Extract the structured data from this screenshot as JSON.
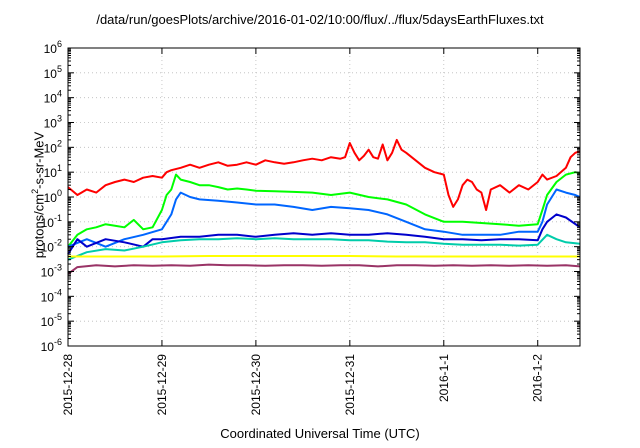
{
  "chart_data": {
    "type": "line",
    "title": "/data/run/goesPlots/archive/2016-01-02/10:00/flux/../flux/5daysEarthFluxes.txt",
    "xlabel": "Coordinated Universal Time (UTC)",
    "ylabel": {
      "prefix": "protons/cm",
      "sup": "2",
      "suffix": "-s-sr-MeV"
    },
    "yscale": "log",
    "ylim": [
      1e-06,
      1000000.0
    ],
    "xlim": [
      0,
      5.45
    ],
    "x_unit": "days since 2015-12-28 00:00 UTC",
    "grid": true,
    "x_ticks": [
      {
        "x": 0,
        "label": "2015-12-28"
      },
      {
        "x": 1,
        "label": "2015-12-29"
      },
      {
        "x": 2,
        "label": "2015-12-30"
      },
      {
        "x": 3,
        "label": "2015-12-31"
      },
      {
        "x": 4,
        "label": "2016-1-1"
      },
      {
        "x": 5,
        "label": "2016-1-2"
      }
    ],
    "y_ticks": [
      {
        "base": "10",
        "exp": "-6"
      },
      {
        "base": "10",
        "exp": "-5"
      },
      {
        "base": "10",
        "exp": "-4"
      },
      {
        "base": "10",
        "exp": "-3"
      },
      {
        "base": "10",
        "exp": "-2"
      },
      {
        "base": "10",
        "exp": "-1"
      },
      {
        "base": "10",
        "exp": "0"
      },
      {
        "base": "10",
        "exp": "1"
      },
      {
        "base": "10",
        "exp": "2"
      },
      {
        "base": "10",
        "exp": "3"
      },
      {
        "base": "10",
        "exp": "4"
      },
      {
        "base": "10",
        "exp": "5"
      },
      {
        "base": "10",
        "exp": "6"
      }
    ],
    "series": [
      {
        "color": "#ff0000",
        "points": [
          [
            0,
            2.5
          ],
          [
            0.1,
            1.2
          ],
          [
            0.2,
            2
          ],
          [
            0.3,
            1.5
          ],
          [
            0.4,
            3
          ],
          [
            0.5,
            4
          ],
          [
            0.6,
            5
          ],
          [
            0.7,
            4
          ],
          [
            0.8,
            6
          ],
          [
            0.9,
            7
          ],
          [
            1.0,
            6
          ],
          [
            1.05,
            10
          ],
          [
            1.1,
            12
          ],
          [
            1.2,
            15
          ],
          [
            1.3,
            20
          ],
          [
            1.4,
            15
          ],
          [
            1.5,
            20
          ],
          [
            1.6,
            25
          ],
          [
            1.7,
            18
          ],
          [
            1.8,
            20
          ],
          [
            1.9,
            25
          ],
          [
            2.0,
            20
          ],
          [
            2.1,
            30
          ],
          [
            2.2,
            25
          ],
          [
            2.3,
            22
          ],
          [
            2.4,
            25
          ],
          [
            2.5,
            30
          ],
          [
            2.6,
            35
          ],
          [
            2.7,
            30
          ],
          [
            2.8,
            40
          ],
          [
            2.9,
            35
          ],
          [
            2.95,
            40
          ],
          [
            3.0,
            150
          ],
          [
            3.05,
            60
          ],
          [
            3.1,
            30
          ],
          [
            3.15,
            45
          ],
          [
            3.2,
            80
          ],
          [
            3.25,
            40
          ],
          [
            3.3,
            35
          ],
          [
            3.35,
            130
          ],
          [
            3.4,
            30
          ],
          [
            3.45,
            60
          ],
          [
            3.5,
            200
          ],
          [
            3.55,
            80
          ],
          [
            3.6,
            60
          ],
          [
            3.7,
            30
          ],
          [
            3.8,
            15
          ],
          [
            3.9,
            10
          ],
          [
            4.0,
            8
          ],
          [
            4.05,
            1.2
          ],
          [
            4.1,
            0.4
          ],
          [
            4.15,
            0.8
          ],
          [
            4.2,
            3
          ],
          [
            4.25,
            5
          ],
          [
            4.3,
            4
          ],
          [
            4.35,
            2
          ],
          [
            4.4,
            1.5
          ],
          [
            4.45,
            0.3
          ],
          [
            4.5,
            2
          ],
          [
            4.6,
            3
          ],
          [
            4.7,
            1.5
          ],
          [
            4.8,
            3
          ],
          [
            4.9,
            2
          ],
          [
            5.0,
            4
          ],
          [
            5.05,
            8
          ],
          [
            5.1,
            5
          ],
          [
            5.2,
            7
          ],
          [
            5.3,
            15
          ],
          [
            5.35,
            40
          ],
          [
            5.4,
            60
          ],
          [
            5.45,
            70
          ]
        ]
      },
      {
        "color": "#00ff00",
        "points": [
          [
            0,
            0.01
          ],
          [
            0.1,
            0.03
          ],
          [
            0.2,
            0.05
          ],
          [
            0.3,
            0.06
          ],
          [
            0.4,
            0.08
          ],
          [
            0.5,
            0.07
          ],
          [
            0.6,
            0.06
          ],
          [
            0.7,
            0.12
          ],
          [
            0.8,
            0.05
          ],
          [
            0.9,
            0.06
          ],
          [
            1.0,
            0.3
          ],
          [
            1.05,
            1.2
          ],
          [
            1.1,
            2
          ],
          [
            1.15,
            8
          ],
          [
            1.2,
            5
          ],
          [
            1.3,
            4
          ],
          [
            1.4,
            3
          ],
          [
            1.5,
            3
          ],
          [
            1.6,
            2.5
          ],
          [
            1.7,
            2
          ],
          [
            1.8,
            2.2
          ],
          [
            1.9,
            2
          ],
          [
            2.0,
            1.8
          ],
          [
            2.2,
            1.7
          ],
          [
            2.4,
            1.6
          ],
          [
            2.6,
            1.5
          ],
          [
            2.8,
            1.2
          ],
          [
            3.0,
            1.5
          ],
          [
            3.2,
            1.0
          ],
          [
            3.4,
            0.8
          ],
          [
            3.6,
            0.5
          ],
          [
            3.8,
            0.2
          ],
          [
            4.0,
            0.1
          ],
          [
            4.2,
            0.1
          ],
          [
            4.4,
            0.09
          ],
          [
            4.6,
            0.08
          ],
          [
            4.8,
            0.07
          ],
          [
            5.0,
            0.08
          ],
          [
            5.05,
            0.3
          ],
          [
            5.1,
            1.2
          ],
          [
            5.2,
            4
          ],
          [
            5.3,
            8
          ],
          [
            5.4,
            10
          ],
          [
            5.45,
            9
          ]
        ]
      },
      {
        "color": "#0066ff",
        "points": [
          [
            0,
            0.01
          ],
          [
            0.2,
            0.02
          ],
          [
            0.4,
            0.01
          ],
          [
            0.6,
            0.02
          ],
          [
            0.8,
            0.03
          ],
          [
            1.0,
            0.05
          ],
          [
            1.1,
            0.2
          ],
          [
            1.15,
            0.8
          ],
          [
            1.2,
            1.5
          ],
          [
            1.3,
            1.0
          ],
          [
            1.4,
            0.8
          ],
          [
            1.6,
            0.7
          ],
          [
            1.8,
            0.6
          ],
          [
            2.0,
            0.5
          ],
          [
            2.2,
            0.5
          ],
          [
            2.4,
            0.4
          ],
          [
            2.6,
            0.3
          ],
          [
            2.8,
            0.4
          ],
          [
            3.0,
            0.35
          ],
          [
            3.2,
            0.3
          ],
          [
            3.4,
            0.2
          ],
          [
            3.6,
            0.1
          ],
          [
            3.8,
            0.05
          ],
          [
            4.0,
            0.04
          ],
          [
            4.2,
            0.03
          ],
          [
            4.4,
            0.03
          ],
          [
            4.6,
            0.03
          ],
          [
            4.8,
            0.04
          ],
          [
            5.0,
            0.04
          ],
          [
            5.05,
            0.1
          ],
          [
            5.1,
            0.5
          ],
          [
            5.2,
            2
          ],
          [
            5.3,
            1.5
          ],
          [
            5.4,
            1.2
          ],
          [
            5.45,
            1.0
          ]
        ]
      },
      {
        "color": "#0000cc",
        "points": [
          [
            0,
            0.005
          ],
          [
            0.1,
            0.02
          ],
          [
            0.2,
            0.01
          ],
          [
            0.4,
            0.02
          ],
          [
            0.6,
            0.015
          ],
          [
            0.8,
            0.01
          ],
          [
            0.9,
            0.02
          ],
          [
            1.0,
            0.02
          ],
          [
            1.2,
            0.025
          ],
          [
            1.4,
            0.025
          ],
          [
            1.6,
            0.03
          ],
          [
            1.8,
            0.03
          ],
          [
            2.0,
            0.025
          ],
          [
            2.2,
            0.03
          ],
          [
            2.4,
            0.035
          ],
          [
            2.6,
            0.03
          ],
          [
            2.8,
            0.035
          ],
          [
            3.0,
            0.03
          ],
          [
            3.2,
            0.03
          ],
          [
            3.4,
            0.035
          ],
          [
            3.6,
            0.03
          ],
          [
            3.8,
            0.025
          ],
          [
            4.0,
            0.02
          ],
          [
            4.2,
            0.02
          ],
          [
            4.4,
            0.018
          ],
          [
            4.6,
            0.02
          ],
          [
            4.8,
            0.02
          ],
          [
            5.0,
            0.018
          ],
          [
            5.05,
            0.05
          ],
          [
            5.1,
            0.1
          ],
          [
            5.2,
            0.2
          ],
          [
            5.3,
            0.15
          ],
          [
            5.45,
            0.06
          ]
        ]
      },
      {
        "color": "#00ccaa",
        "points": [
          [
            0,
            0.003
          ],
          [
            0.2,
            0.006
          ],
          [
            0.4,
            0.008
          ],
          [
            0.6,
            0.007
          ],
          [
            0.8,
            0.01
          ],
          [
            1.0,
            0.015
          ],
          [
            1.2,
            0.018
          ],
          [
            1.4,
            0.02
          ],
          [
            1.6,
            0.02
          ],
          [
            1.8,
            0.022
          ],
          [
            2.0,
            0.02
          ],
          [
            2.2,
            0.022
          ],
          [
            2.4,
            0.02
          ],
          [
            2.6,
            0.02
          ],
          [
            2.8,
            0.02
          ],
          [
            3.0,
            0.018
          ],
          [
            3.2,
            0.018
          ],
          [
            3.4,
            0.016
          ],
          [
            3.6,
            0.015
          ],
          [
            3.8,
            0.015
          ],
          [
            4.0,
            0.013
          ],
          [
            4.2,
            0.012
          ],
          [
            4.4,
            0.012
          ],
          [
            4.6,
            0.012
          ],
          [
            4.8,
            0.011
          ],
          [
            5.0,
            0.012
          ],
          [
            5.1,
            0.03
          ],
          [
            5.2,
            0.02
          ],
          [
            5.3,
            0.015
          ],
          [
            5.45,
            0.013
          ]
        ]
      },
      {
        "color": "#ffff00",
        "points": [
          [
            0,
            0.004
          ],
          [
            0.5,
            0.004
          ],
          [
            1.0,
            0.004
          ],
          [
            1.5,
            0.0042
          ],
          [
            2.0,
            0.0042
          ],
          [
            2.5,
            0.0042
          ],
          [
            3.0,
            0.0042
          ],
          [
            3.5,
            0.004
          ],
          [
            4.0,
            0.004
          ],
          [
            4.5,
            0.004
          ],
          [
            5.0,
            0.004
          ],
          [
            5.45,
            0.004
          ]
        ]
      },
      {
        "color": "#993366",
        "points": [
          [
            0,
            0.0008
          ],
          [
            0.1,
            0.0015
          ],
          [
            0.3,
            0.0018
          ],
          [
            0.5,
            0.0016
          ],
          [
            0.7,
            0.0018
          ],
          [
            0.9,
            0.0017
          ],
          [
            1.1,
            0.0018
          ],
          [
            1.3,
            0.0017
          ],
          [
            1.5,
            0.0019
          ],
          [
            1.7,
            0.0018
          ],
          [
            1.9,
            0.0018
          ],
          [
            2.1,
            0.0017
          ],
          [
            2.3,
            0.0018
          ],
          [
            2.5,
            0.0018
          ],
          [
            2.7,
            0.0017
          ],
          [
            2.9,
            0.0018
          ],
          [
            3.1,
            0.0018
          ],
          [
            3.3,
            0.0016
          ],
          [
            3.5,
            0.0018
          ],
          [
            3.7,
            0.0018
          ],
          [
            3.9,
            0.0017
          ],
          [
            4.1,
            0.0018
          ],
          [
            4.3,
            0.0017
          ],
          [
            4.5,
            0.0018
          ],
          [
            4.7,
            0.0017
          ],
          [
            4.9,
            0.0018
          ],
          [
            5.1,
            0.0017
          ],
          [
            5.3,
            0.0018
          ],
          [
            5.45,
            0.0016
          ]
        ]
      }
    ]
  }
}
